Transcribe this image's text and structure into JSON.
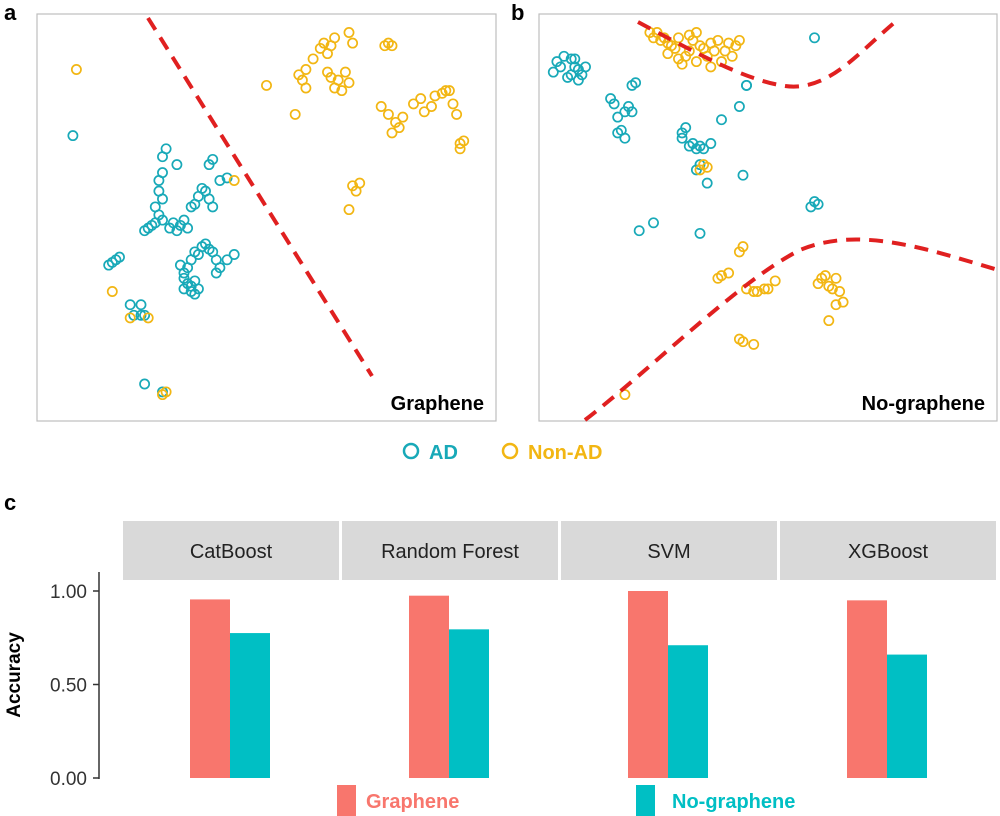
{
  "chart_data": [
    {
      "panel": "a",
      "type": "scatter",
      "label": "Graphene",
      "ad_points": [
        [
          -1.8,
          1.9
        ],
        [
          -1.3,
          -0.55
        ],
        [
          -1.25,
          -0.5
        ],
        [
          -1.2,
          -0.45
        ],
        [
          -1.15,
          -0.4
        ],
        [
          -1.0,
          -1.3
        ],
        [
          -0.95,
          -1.5
        ],
        [
          -0.85,
          -1.5
        ],
        [
          -0.8,
          -1.5
        ],
        [
          -0.85,
          -1.3
        ],
        [
          -0.8,
          -2.8
        ],
        [
          -0.55,
          -2.95
        ],
        [
          -0.8,
          0.1
        ],
        [
          -0.75,
          0.15
        ],
        [
          -0.7,
          0.2
        ],
        [
          -0.65,
          0.25
        ],
        [
          -0.55,
          0.3
        ],
        [
          -0.6,
          0.4
        ],
        [
          -0.65,
          0.55
        ],
        [
          -0.55,
          0.7
        ],
        [
          -0.6,
          0.85
        ],
        [
          -0.55,
          1.2
        ],
        [
          -0.6,
          1.05
        ],
        [
          -0.55,
          1.5
        ],
        [
          -0.5,
          1.65
        ],
        [
          -0.35,
          1.35
        ],
        [
          -0.45,
          0.15
        ],
        [
          -0.4,
          0.25
        ],
        [
          -0.35,
          0.1
        ],
        [
          -0.3,
          0.2
        ],
        [
          -0.25,
          0.3
        ],
        [
          -0.2,
          0.15
        ],
        [
          -0.15,
          0.55
        ],
        [
          -0.1,
          0.6
        ],
        [
          -0.05,
          0.75
        ],
        [
          0.0,
          0.9
        ],
        [
          0.05,
          0.85
        ],
        [
          0.1,
          0.7
        ],
        [
          0.15,
          0.55
        ],
        [
          0.1,
          1.35
        ],
        [
          0.15,
          1.45
        ],
        [
          0.25,
          1.05
        ],
        [
          0.35,
          1.1
        ],
        [
          -0.3,
          -0.55
        ],
        [
          -0.25,
          -0.7
        ],
        [
          -0.2,
          -0.6
        ],
        [
          -0.15,
          -0.45
        ],
        [
          -0.1,
          -0.3
        ],
        [
          -0.05,
          -0.35
        ],
        [
          0.0,
          -0.2
        ],
        [
          0.05,
          -0.15
        ],
        [
          0.1,
          -0.25
        ],
        [
          0.15,
          -0.3
        ],
        [
          0.2,
          -0.45
        ],
        [
          0.25,
          -0.6
        ],
        [
          -0.25,
          -0.8
        ],
        [
          -0.2,
          -0.9
        ],
        [
          -0.15,
          -1.05
        ],
        [
          -0.1,
          -1.1
        ],
        [
          -0.05,
          -1.0
        ],
        [
          0.2,
          -0.7
        ],
        [
          0.35,
          -0.45
        ],
        [
          0.45,
          -0.35
        ],
        [
          -0.25,
          -1.0
        ],
        [
          -0.15,
          -0.95
        ],
        [
          -0.1,
          -0.85
        ]
      ],
      "non_ad_points": [
        [
          -1.75,
          3.15
        ],
        [
          -1.25,
          -1.05
        ],
        [
          -1.0,
          -1.55
        ],
        [
          -0.75,
          -1.55
        ],
        [
          -0.55,
          -3.0
        ],
        [
          -0.5,
          -2.95
        ],
        [
          0.45,
          1.05
        ],
        [
          0.9,
          2.85
        ],
        [
          1.3,
          2.3
        ],
        [
          1.35,
          3.05
        ],
        [
          1.4,
          2.95
        ],
        [
          1.45,
          3.15
        ],
        [
          1.45,
          2.8
        ],
        [
          1.55,
          3.35
        ],
        [
          1.65,
          3.55
        ],
        [
          1.7,
          3.65
        ],
        [
          1.75,
          3.45
        ],
        [
          1.8,
          3.6
        ],
        [
          1.85,
          3.75
        ],
        [
          1.75,
          3.1
        ],
        [
          1.8,
          3.0
        ],
        [
          1.85,
          2.8
        ],
        [
          1.9,
          2.95
        ],
        [
          1.95,
          2.75
        ],
        [
          2.0,
          3.1
        ],
        [
          2.05,
          3.85
        ],
        [
          2.1,
          3.65
        ],
        [
          2.05,
          2.9
        ],
        [
          2.55,
          3.6
        ],
        [
          2.6,
          3.65
        ],
        [
          2.65,
          3.6
        ],
        [
          2.5,
          2.45
        ],
        [
          2.6,
          2.3
        ],
        [
          2.7,
          2.15
        ],
        [
          2.75,
          2.05
        ],
        [
          2.8,
          2.25
        ],
        [
          2.65,
          1.95
        ],
        [
          2.95,
          2.5
        ],
        [
          3.05,
          2.6
        ],
        [
          3.2,
          2.45
        ],
        [
          3.1,
          2.35
        ],
        [
          3.25,
          2.65
        ],
        [
          3.35,
          2.7
        ],
        [
          3.4,
          2.75
        ],
        [
          3.45,
          2.75
        ],
        [
          3.5,
          2.5
        ],
        [
          3.55,
          2.3
        ],
        [
          3.6,
          1.75
        ],
        [
          3.65,
          1.8
        ],
        [
          3.6,
          1.65
        ],
        [
          2.1,
          0.95
        ],
        [
          2.15,
          0.85
        ],
        [
          2.05,
          0.5
        ],
        [
          2.2,
          1.0
        ]
      ]
    },
    {
      "panel": "b",
      "type": "scatter",
      "label": "No-graphene",
      "ad_points": [
        [
          -2.1,
          3.1
        ],
        [
          -2.05,
          3.3
        ],
        [
          -2.0,
          3.2
        ],
        [
          -1.95,
          3.4
        ],
        [
          -1.9,
          3.0
        ],
        [
          -1.85,
          3.35
        ],
        [
          -1.8,
          3.2
        ],
        [
          -1.85,
          3.05
        ],
        [
          -1.8,
          3.35
        ],
        [
          -1.75,
          3.15
        ],
        [
          -1.75,
          2.95
        ],
        [
          -1.7,
          3.05
        ],
        [
          -1.65,
          3.2
        ],
        [
          -1.3,
          2.6
        ],
        [
          -1.25,
          2.5
        ],
        [
          -1.2,
          2.25
        ],
        [
          -1.1,
          2.35
        ],
        [
          -1.05,
          2.45
        ],
        [
          -1.0,
          2.35
        ],
        [
          -1.0,
          2.85
        ],
        [
          -0.95,
          2.9
        ],
        [
          -1.2,
          1.95
        ],
        [
          -1.15,
          2.0
        ],
        [
          -1.1,
          1.85
        ],
        [
          -0.3,
          1.95
        ],
        [
          -0.25,
          2.05
        ],
        [
          -0.3,
          1.85
        ],
        [
          -0.2,
          1.7
        ],
        [
          -0.15,
          1.75
        ],
        [
          -0.1,
          1.65
        ],
        [
          -0.05,
          1.7
        ],
        [
          0.0,
          1.65
        ],
        [
          -0.1,
          1.25
        ],
        [
          -0.05,
          1.35
        ],
        [
          0.05,
          1.0
        ],
        [
          0.1,
          1.75
        ],
        [
          0.5,
          2.45
        ],
        [
          0.6,
          2.85
        ],
        [
          0.6,
          2.85
        ],
        [
          0.55,
          1.15
        ],
        [
          0.25,
          2.2
        ],
        [
          -0.9,
          0.1
        ],
        [
          -0.7,
          0.25
        ],
        [
          -0.05,
          0.05
        ],
        [
          1.55,
          3.75
        ],
        [
          1.5,
          0.55
        ],
        [
          1.55,
          0.65
        ],
        [
          1.6,
          0.6
        ]
      ],
      "non_ad_points": [
        [
          -0.75,
          3.85
        ],
        [
          -0.7,
          3.75
        ],
        [
          -0.65,
          3.85
        ],
        [
          -0.6,
          3.7
        ],
        [
          -0.55,
          3.75
        ],
        [
          -0.5,
          3.65
        ],
        [
          -0.5,
          3.45
        ],
        [
          -0.45,
          3.6
        ],
        [
          -0.4,
          3.55
        ],
        [
          -0.35,
          3.75
        ],
        [
          -0.35,
          3.35
        ],
        [
          -0.3,
          3.25
        ],
        [
          -0.25,
          3.4
        ],
        [
          -0.2,
          3.5
        ],
        [
          -0.2,
          3.8
        ],
        [
          -0.15,
          3.7
        ],
        [
          -0.1,
          3.85
        ],
        [
          -0.1,
          3.3
        ],
        [
          -0.05,
          3.6
        ],
        [
          0.0,
          3.55
        ],
        [
          0.05,
          3.4
        ],
        [
          0.1,
          3.2
        ],
        [
          0.1,
          3.65
        ],
        [
          0.15,
          3.5
        ],
        [
          0.2,
          3.7
        ],
        [
          0.25,
          3.3
        ],
        [
          0.3,
          3.5
        ],
        [
          0.35,
          3.65
        ],
        [
          0.4,
          3.4
        ],
        [
          0.45,
          3.6
        ],
        [
          0.5,
          3.7
        ],
        [
          -0.05,
          1.25
        ],
        [
          0.0,
          1.35
        ],
        [
          0.05,
          1.3
        ],
        [
          0.2,
          -0.8
        ],
        [
          0.25,
          -0.75
        ],
        [
          0.35,
          -0.7
        ],
        [
          0.5,
          -0.3
        ],
        [
          0.55,
          -0.2
        ],
        [
          0.6,
          -1.0
        ],
        [
          0.7,
          -1.05
        ],
        [
          0.75,
          -1.05
        ],
        [
          0.85,
          -1.0
        ],
        [
          0.9,
          -1.0
        ],
        [
          1.0,
          -0.85
        ],
        [
          1.6,
          -0.9
        ],
        [
          1.65,
          -0.8
        ],
        [
          1.7,
          -0.75
        ],
        [
          1.75,
          -0.95
        ],
        [
          1.8,
          -1.0
        ],
        [
          1.85,
          -0.8
        ],
        [
          1.85,
          -1.3
        ],
        [
          1.75,
          -1.6
        ],
        [
          1.9,
          -1.05
        ],
        [
          1.95,
          -1.25
        ],
        [
          0.5,
          -1.95
        ],
        [
          0.55,
          -2.0
        ],
        [
          0.7,
          -2.05
        ],
        [
          -1.1,
          -3.0
        ]
      ]
    },
    {
      "panel": "c",
      "type": "bar",
      "ylabel": "Accuracy",
      "categories": [
        "CatBoost",
        "Random Forest",
        "SVM",
        "XGBoost"
      ],
      "series": [
        {
          "name": "Graphene",
          "values": [
            0.955,
            0.975,
            1.0,
            0.95
          ]
        },
        {
          "name": "No-graphene",
          "values": [
            0.775,
            0.795,
            0.71,
            0.66
          ]
        }
      ],
      "ylim": [
        0,
        1.0
      ],
      "yticks": [
        "0.00",
        "0.50",
        "1.00"
      ],
      "legend": "bottom"
    }
  ],
  "panels": {
    "a": "a",
    "b": "b",
    "c": "c"
  },
  "labels": {
    "a": "Graphene",
    "b": "No-graphene"
  },
  "scatter_legend": {
    "ad": "AD",
    "non_ad": "Non-AD"
  },
  "bar_legend": {
    "graphene": "Graphene",
    "no_graphene": "No-graphene"
  },
  "colors": {
    "ad": "#18a9b8",
    "non_ad": "#f2b613",
    "boundary": "#e02020",
    "graphene_bar": "#f8766d",
    "no_graphene_bar": "#00bfc4",
    "strip": "#d9d9d9",
    "frame": "#bdbdbd"
  }
}
